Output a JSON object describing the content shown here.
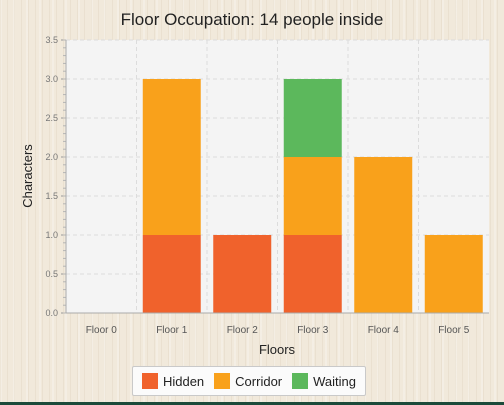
{
  "chart_data": {
    "type": "bar",
    "stacked": true,
    "title": "Floor Occupation: 14 people inside",
    "xlabel": "Floors",
    "ylabel": "Characters",
    "categories": [
      "Floor 0",
      "Floor 1",
      "Floor 2",
      "Floor 3",
      "Floor 4",
      "Floor 5"
    ],
    "ylim": [
      0,
      3.5
    ],
    "yticks": [
      "0.0",
      "0.5",
      "1.0",
      "1.5",
      "2.0",
      "2.5",
      "3.0",
      "3.5"
    ],
    "grid": true,
    "legend_position": "bottom-center",
    "series": [
      {
        "name": "Hidden",
        "color": "#f0622c",
        "values": [
          0,
          1,
          1,
          1,
          0,
          0
        ]
      },
      {
        "name": "Corridor",
        "color": "#f9a11b",
        "values": [
          0,
          2,
          0,
          1,
          2,
          1
        ]
      },
      {
        "name": "Waiting",
        "color": "#5cb85c",
        "values": [
          0,
          0,
          0,
          1,
          0,
          0
        ]
      }
    ]
  }
}
